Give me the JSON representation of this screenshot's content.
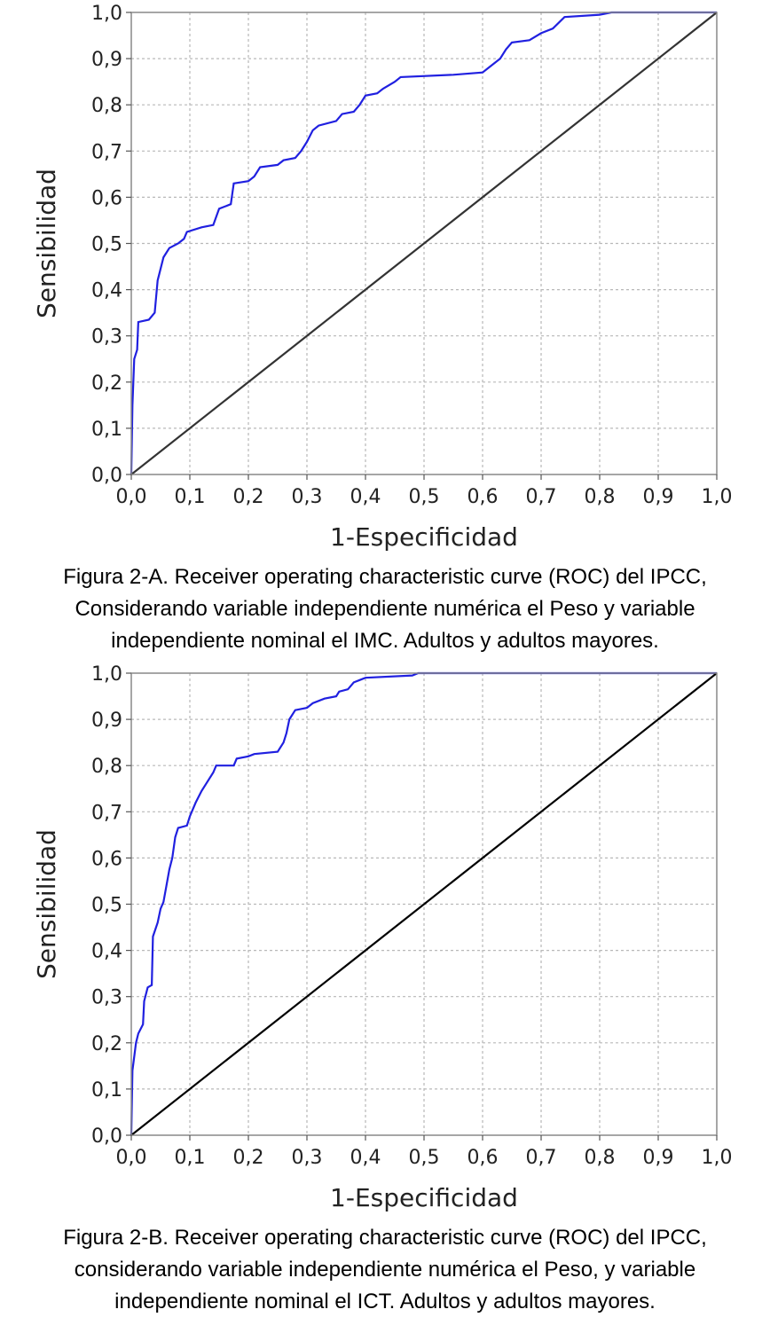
{
  "chart_data": [
    {
      "type": "line",
      "xlabel": "1-Especificidad",
      "ylabel": "Sensibilidad",
      "xlim": [
        0,
        1
      ],
      "ylim": [
        0,
        1
      ],
      "xticks": [
        "0,0",
        "0,1",
        "0,2",
        "0,3",
        "0,4",
        "0,5",
        "0,6",
        "0,7",
        "0,8",
        "0,9",
        "1,0"
      ],
      "yticks": [
        "0,0",
        "0,1",
        "0,2",
        "0,3",
        "0,4",
        "0,5",
        "0,6",
        "0,7",
        "0,8",
        "0,9",
        "1,0"
      ],
      "grid": true,
      "series": [
        {
          "color": "#2020e0",
          "points": [
            [
              0,
              0
            ],
            [
              0.002,
              0.15
            ],
            [
              0.005,
              0.25
            ],
            [
              0.01,
              0.27
            ],
            [
              0.012,
              0.33
            ],
            [
              0.03,
              0.335
            ],
            [
              0.04,
              0.35
            ],
            [
              0.045,
              0.42
            ],
            [
              0.055,
              0.47
            ],
            [
              0.06,
              0.48
            ],
            [
              0.065,
              0.49
            ],
            [
              0.08,
              0.5
            ],
            [
              0.09,
              0.51
            ],
            [
              0.095,
              0.525
            ],
            [
              0.12,
              0.535
            ],
            [
              0.14,
              0.54
            ],
            [
              0.15,
              0.575
            ],
            [
              0.17,
              0.585
            ],
            [
              0.175,
              0.63
            ],
            [
              0.2,
              0.635
            ],
            [
              0.21,
              0.645
            ],
            [
              0.22,
              0.665
            ],
            [
              0.25,
              0.67
            ],
            [
              0.26,
              0.68
            ],
            [
              0.28,
              0.685
            ],
            [
              0.29,
              0.7
            ],
            [
              0.3,
              0.72
            ],
            [
              0.31,
              0.745
            ],
            [
              0.32,
              0.755
            ],
            [
              0.35,
              0.765
            ],
            [
              0.36,
              0.78
            ],
            [
              0.38,
              0.785
            ],
            [
              0.39,
              0.8
            ],
            [
              0.4,
              0.82
            ],
            [
              0.42,
              0.825
            ],
            [
              0.43,
              0.835
            ],
            [
              0.45,
              0.85
            ],
            [
              0.46,
              0.86
            ],
            [
              0.55,
              0.865
            ],
            [
              0.6,
              0.87
            ],
            [
              0.61,
              0.88
            ],
            [
              0.63,
              0.9
            ],
            [
              0.64,
              0.92
            ],
            [
              0.65,
              0.935
            ],
            [
              0.68,
              0.94
            ],
            [
              0.7,
              0.955
            ],
            [
              0.72,
              0.965
            ],
            [
              0.74,
              0.99
            ],
            [
              0.8,
              0.995
            ],
            [
              0.82,
              1.0
            ],
            [
              1.0,
              1.0
            ]
          ]
        },
        {
          "color": "#333333",
          "points": [
            [
              0,
              0
            ],
            [
              1,
              1
            ]
          ]
        }
      ]
    },
    {
      "type": "line",
      "xlabel": "1-Especificidad",
      "ylabel": "Sensibilidad",
      "xlim": [
        0,
        1
      ],
      "ylim": [
        0,
        1
      ],
      "xticks": [
        "0,0",
        "0,1",
        "0,2",
        "0,3",
        "0,4",
        "0,5",
        "0,6",
        "0,7",
        "0,8",
        "0,9",
        "1,0"
      ],
      "yticks": [
        "0,0",
        "0,1",
        "0,2",
        "0,3",
        "0,4",
        "0,5",
        "0,6",
        "0,7",
        "0,8",
        "0,9",
        "1,0"
      ],
      "grid": true,
      "series": [
        {
          "color": "#2020e0",
          "points": [
            [
              0,
              0
            ],
            [
              0.002,
              0.14
            ],
            [
              0.008,
              0.2
            ],
            [
              0.012,
              0.22
            ],
            [
              0.02,
              0.24
            ],
            [
              0.022,
              0.29
            ],
            [
              0.028,
              0.32
            ],
            [
              0.035,
              0.325
            ],
            [
              0.037,
              0.43
            ],
            [
              0.045,
              0.46
            ],
            [
              0.05,
              0.49
            ],
            [
              0.055,
              0.505
            ],
            [
              0.06,
              0.54
            ],
            [
              0.065,
              0.575
            ],
            [
              0.07,
              0.6
            ],
            [
              0.075,
              0.645
            ],
            [
              0.08,
              0.665
            ],
            [
              0.095,
              0.67
            ],
            [
              0.1,
              0.69
            ],
            [
              0.11,
              0.72
            ],
            [
              0.12,
              0.745
            ],
            [
              0.13,
              0.765
            ],
            [
              0.14,
              0.785
            ],
            [
              0.145,
              0.8
            ],
            [
              0.175,
              0.8
            ],
            [
              0.18,
              0.815
            ],
            [
              0.2,
              0.82
            ],
            [
              0.21,
              0.825
            ],
            [
              0.25,
              0.83
            ],
            [
              0.26,
              0.85
            ],
            [
              0.265,
              0.87
            ],
            [
              0.27,
              0.9
            ],
            [
              0.28,
              0.92
            ],
            [
              0.3,
              0.925
            ],
            [
              0.31,
              0.935
            ],
            [
              0.33,
              0.945
            ],
            [
              0.35,
              0.95
            ],
            [
              0.355,
              0.96
            ],
            [
              0.37,
              0.965
            ],
            [
              0.38,
              0.98
            ],
            [
              0.39,
              0.985
            ],
            [
              0.4,
              0.99
            ],
            [
              0.48,
              0.995
            ],
            [
              0.49,
              1.0
            ],
            [
              1.0,
              1.0
            ]
          ]
        },
        {
          "color": "#000000",
          "points": [
            [
              0,
              0
            ],
            [
              1,
              1
            ]
          ]
        }
      ]
    }
  ],
  "captions": {
    "a": [
      "Figura 2-A. Receiver operating characteristic curve (ROC) del IPCC,",
      "Considerando variable independiente numérica el Peso y variable",
      "independiente nominal el IMC. Adultos y adultos mayores."
    ],
    "b": [
      "Figura 2-B. Receiver operating characteristic curve (ROC) del IPCC,",
      "considerando variable independiente numérica el Peso, y variable",
      "independiente nominal el ICT. Adultos y adultos mayores."
    ]
  }
}
